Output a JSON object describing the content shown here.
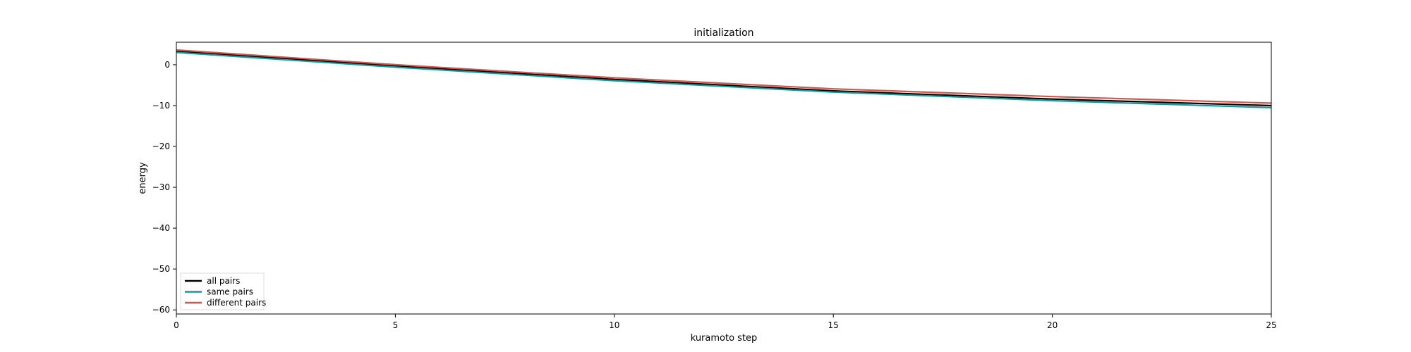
{
  "chart_data": {
    "type": "line",
    "title": "initialization",
    "xlabel": "kuramoto step",
    "ylabel": "energy",
    "xlim": [
      0,
      25
    ],
    "ylim": [
      -61,
      5.5
    ],
    "xticks": [
      0,
      5,
      10,
      15,
      20,
      25
    ],
    "yticks": [
      0,
      -10,
      -20,
      -30,
      -40,
      -50,
      -60
    ],
    "ytick_labels": [
      "0",
      "−10",
      "−20",
      "−30",
      "−40",
      "−50",
      "−60"
    ],
    "grid": false,
    "legend_placement": "lower-left",
    "x": [
      0,
      5,
      10,
      15,
      20,
      25
    ],
    "series": [
      {
        "name": "all pairs",
        "color": "#000000",
        "values": [
          3.3,
          -0.3,
          -3.6,
          -6.4,
          -8.4,
          -10.0
        ]
      },
      {
        "name": "same pairs",
        "color": "#17999a",
        "values": [
          3.0,
          -0.6,
          -3.9,
          -6.7,
          -8.8,
          -10.5
        ]
      },
      {
        "name": "different pairs",
        "color": "#d2574d",
        "values": [
          3.6,
          0.0,
          -3.2,
          -5.9,
          -7.8,
          -9.4
        ]
      }
    ]
  }
}
